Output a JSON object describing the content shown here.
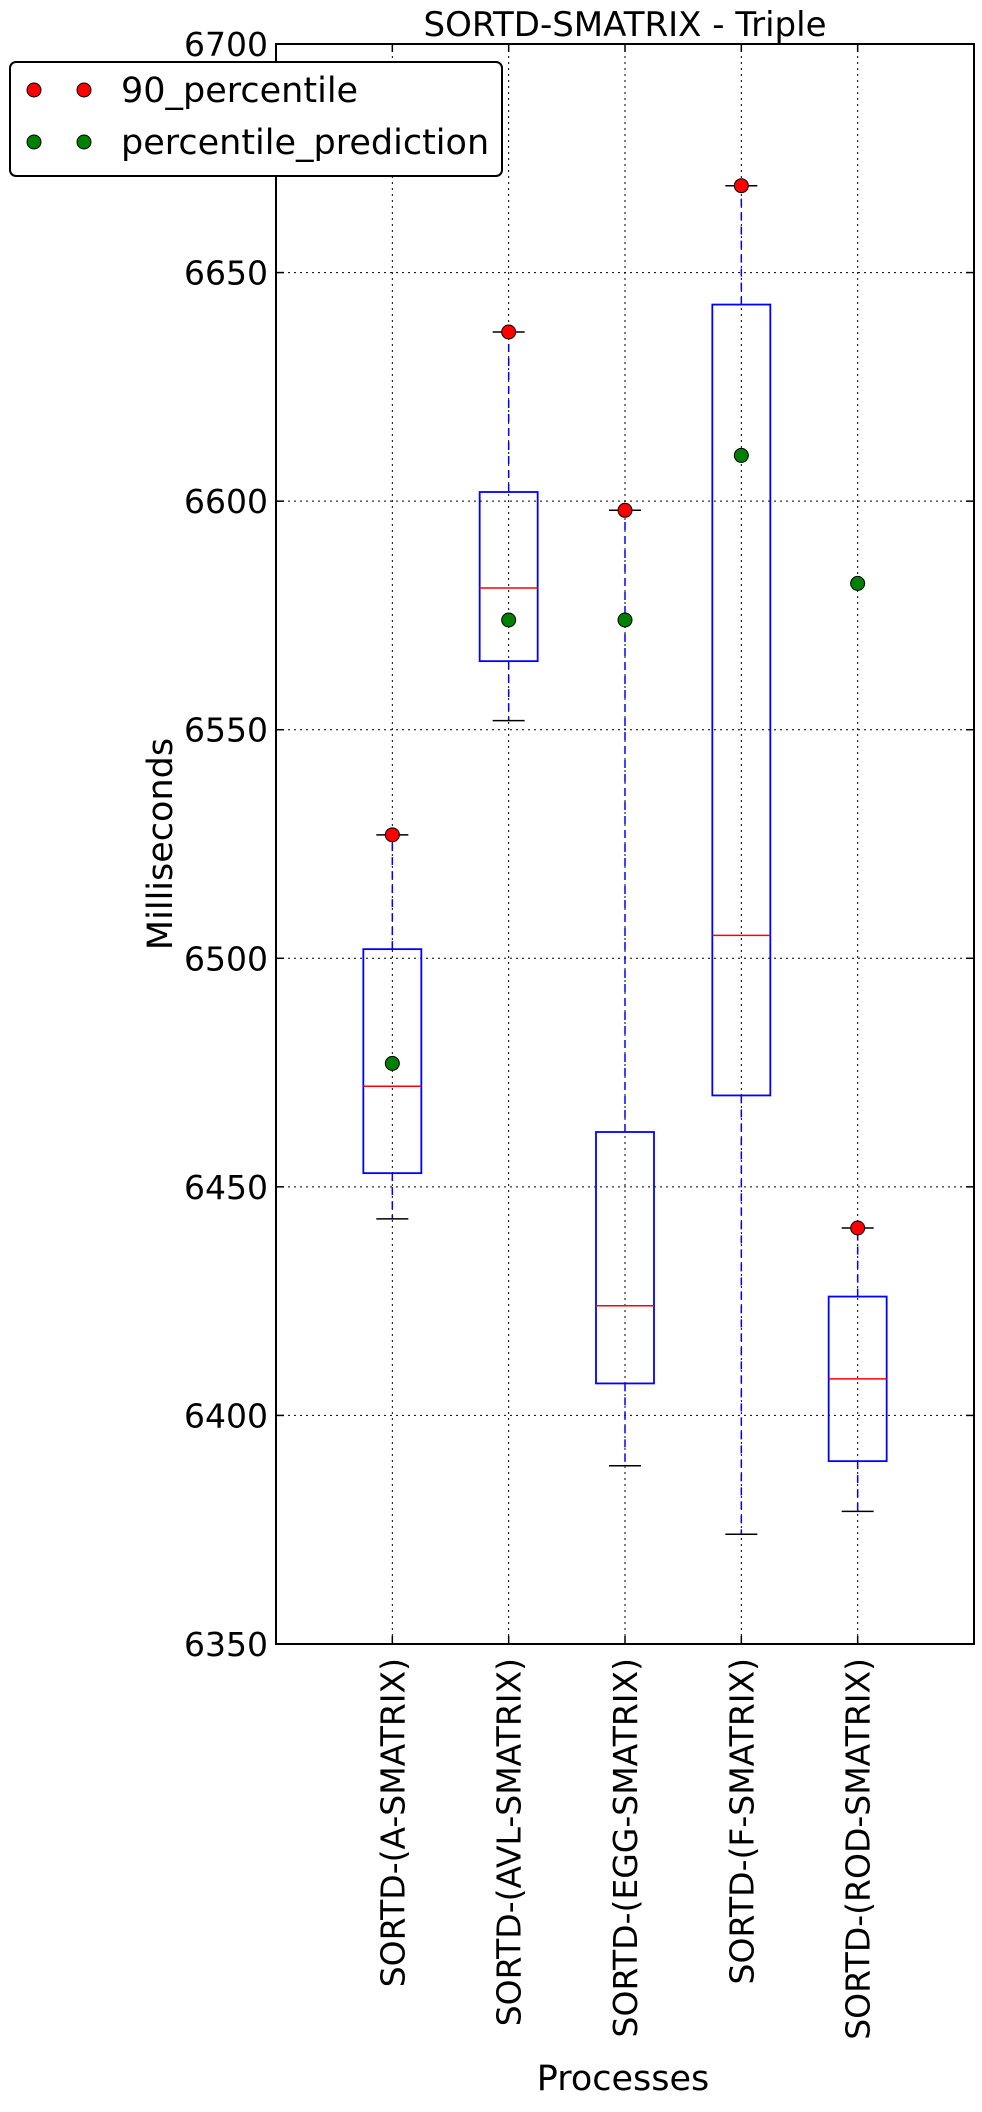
{
  "chart_data": {
    "type": "box",
    "title": "SORTD-SMATRIX - Triple",
    "xlabel": "Processes",
    "ylabel": "Milliseconds",
    "ylim": [
      6350,
      6700
    ],
    "yticks": [
      6350,
      6400,
      6450,
      6500,
      6550,
      6600,
      6650,
      6700
    ],
    "grid": true,
    "legend_position": "top-left",
    "categories": [
      "SORTD-(A-SMATRIX)",
      "SORTD-(AVL-SMATRIX)",
      "SORTD-(EGG-SMATRIX)",
      "SORTD-(F-SMATRIX)",
      "SORTD-(ROD-SMATRIX)"
    ],
    "boxes": [
      {
        "whisker_low": 6443,
        "q1": 6453,
        "median": 6472,
        "q3": 6502,
        "whisker_high": 6527
      },
      {
        "whisker_low": 6552,
        "q1": 6565,
        "median": 6581,
        "q3": 6602,
        "whisker_high": 6637
      },
      {
        "whisker_low": 6389,
        "q1": 6407,
        "median": 6424,
        "q3": 6462,
        "whisker_high": 6598
      },
      {
        "whisker_low": 6374,
        "q1": 6470,
        "median": 6505,
        "q3": 6643,
        "whisker_high": 6669
      },
      {
        "whisker_low": 6379,
        "q1": 6390,
        "median": 6408,
        "q3": 6426,
        "whisker_high": 6441
      }
    ],
    "series": [
      {
        "name": "90_percentile",
        "color": "#ff0000",
        "values": [
          6527,
          6637,
          6598,
          6669,
          6441
        ]
      },
      {
        "name": "percentile_prediction",
        "color": "#008000",
        "values": [
          6477,
          6574,
          6574,
          6610,
          6582
        ]
      }
    ],
    "colors": {
      "box": "#0000ff",
      "median": "#ff0000",
      "whisker_cap": "#000000",
      "grid": "#000000"
    }
  }
}
